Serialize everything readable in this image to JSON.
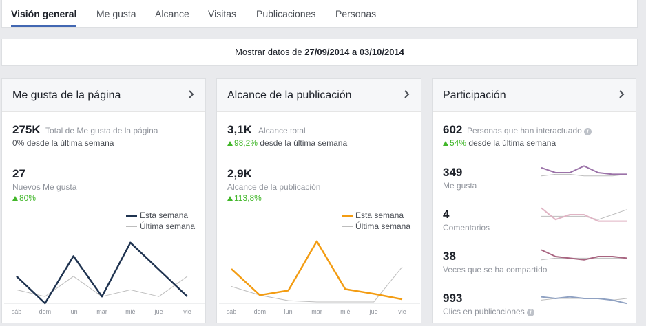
{
  "tabs": [
    {
      "label": "Visión general",
      "active": true
    },
    {
      "label": "Me gusta"
    },
    {
      "label": "Alcance"
    },
    {
      "label": "Visitas"
    },
    {
      "label": "Publicaciones"
    },
    {
      "label": "Personas"
    }
  ],
  "date_range": {
    "prefix": "Mostrar datos de",
    "start": "27/09/2014",
    "separator": "a",
    "end": "03/10/2014"
  },
  "page_likes": {
    "title": "Me gusta de la página",
    "total_value": "275K",
    "total_label": "Total de Me gusta de la página",
    "total_delta": "0%",
    "total_delta_label": "desde la última semana",
    "new_value": "27",
    "new_label": "Nuevos Me gusta",
    "new_delta": "80%",
    "legend_this": "Esta semana",
    "legend_last": "Última semana"
  },
  "post_reach": {
    "title": "Alcance de la publicación",
    "total_value": "3,1K",
    "total_label": "Alcance total",
    "total_delta": "98,2%",
    "total_delta_label": "desde la última semana",
    "post_value": "2,9K",
    "post_label": "Alcance de la publicación",
    "post_delta": "113,8%",
    "legend_this": "Esta semana",
    "legend_last": "Última semana"
  },
  "engagement": {
    "title": "Participación",
    "total_value": "602",
    "total_label": "Personas que han interactuado",
    "total_delta": "54%",
    "total_delta_label": "desde la última semana",
    "rows": [
      {
        "value": "349",
        "label": "Me gusta"
      },
      {
        "value": "4",
        "label": "Comentarios"
      },
      {
        "value": "38",
        "label": "Veces que se ha compartido"
      },
      {
        "value": "993",
        "label": "Clics en publicaciones"
      }
    ]
  },
  "colors": {
    "likes_this_week": "#1f3350",
    "reach_this_week": "#f39c12",
    "last_week": "#bdbdbd",
    "spark_likes": "#9b72a8",
    "spark_comments": "#e0b4c4",
    "spark_shares": "#a86480",
    "spark_clicks": "#8fa1c2",
    "up_arrow": "#42b72a",
    "active_tab": "#4267b2"
  },
  "chart_data": [
    {
      "type": "line",
      "name": "likes",
      "categories": [
        "sáb",
        "dom",
        "lun",
        "mar",
        "mié",
        "jue",
        "vie"
      ],
      "series": [
        {
          "name": "Esta semana",
          "values": [
            4,
            0,
            7,
            1,
            9,
            5,
            1
          ]
        },
        {
          "name": "Última semana",
          "values": [
            2,
            1,
            4,
            1,
            2,
            1,
            4
          ]
        }
      ],
      "ylim": [
        0,
        10
      ]
    },
    {
      "type": "line",
      "name": "reach",
      "categories": [
        "sáb",
        "dom",
        "lun",
        "mar",
        "mié",
        "jue",
        "vie"
      ],
      "series": [
        {
          "name": "Esta semana",
          "values": [
            510,
            120,
            190,
            920,
            210,
            140,
            60
          ]
        },
        {
          "name": "Última semana",
          "values": [
            250,
            120,
            40,
            20,
            20,
            20,
            540
          ]
        }
      ],
      "ylim": [
        0,
        1000
      ]
    },
    {
      "type": "line",
      "name": "sparklines",
      "categories": [
        "sáb",
        "dom",
        "lun",
        "mar",
        "mié",
        "jue",
        "vie"
      ],
      "series": [
        {
          "name": "Me gusta",
          "this": [
            8,
            5,
            5,
            9,
            5,
            4,
            4
          ],
          "last": [
            3,
            4,
            4,
            3,
            3,
            3,
            4
          ]
        },
        {
          "name": "Comentarios",
          "this": [
            9,
            2,
            5,
            5,
            1,
            1,
            1
          ],
          "last": [
            4,
            4,
            4,
            4,
            2,
            5,
            8
          ]
        },
        {
          "name": "Veces que se ha compartido",
          "this": [
            9,
            5,
            4,
            3,
            5,
            5,
            4
          ],
          "last": [
            3,
            4,
            4,
            4,
            4,
            4,
            4
          ]
        },
        {
          "name": "Clics en publicaciones",
          "this": [
            6,
            5,
            6,
            5,
            5,
            4,
            2
          ],
          "last": [
            4,
            5,
            5,
            5,
            5,
            4,
            5
          ]
        }
      ]
    }
  ]
}
